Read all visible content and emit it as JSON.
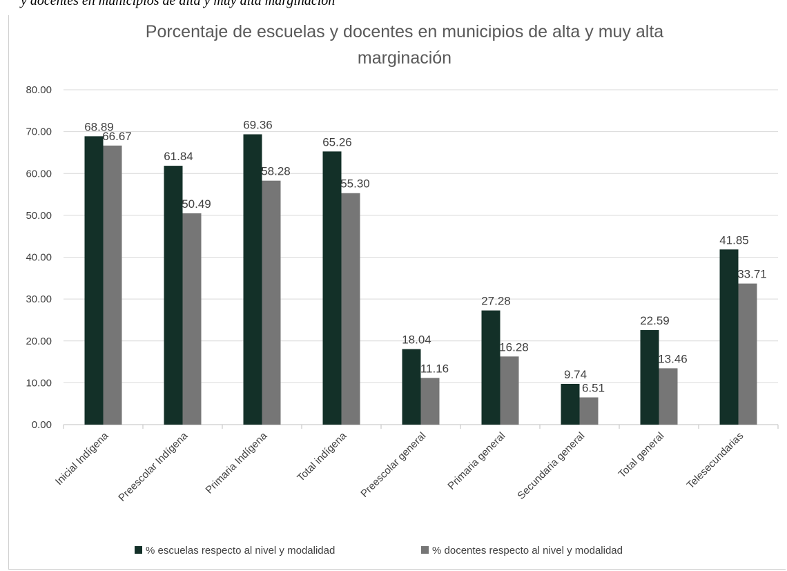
{
  "caption": "y docentes en municipios de alta y muy alta marginación",
  "chart_data": {
    "type": "bar",
    "title_lines": [
      "Porcentaje de escuelas y docentes en municipios de alta y muy alta",
      "marginación"
    ],
    "categories": [
      "Inicial Indígena",
      "Preescolar Indígena",
      "Primaria Indígena",
      "Total indígena",
      "Preescolar general",
      "Primaria general",
      "Secundaria general",
      "Total general",
      "Telesecundarias"
    ],
    "series": [
      {
        "name": "% escuelas respecto al nivel y modalidad",
        "color": "#133028",
        "values": [
          68.89,
          61.84,
          69.36,
          65.26,
          18.04,
          27.28,
          9.74,
          22.59,
          41.85
        ],
        "labels": [
          "68.89",
          "61.84",
          "69.36",
          "65.26",
          "18.04",
          "27.28",
          "9.74",
          "22.59",
          "41.85"
        ]
      },
      {
        "name": "% docentes respecto al nivel y modalidad",
        "color": "#767676",
        "values": [
          66.67,
          50.49,
          58.28,
          55.3,
          11.16,
          16.28,
          6.51,
          13.46,
          33.71
        ],
        "labels": [
          "66.67",
          "50.49",
          "58.28",
          "55.30",
          "11.16",
          "16.28",
          "6.51",
          "13.46",
          "33.71"
        ]
      }
    ],
    "ylim": [
      0,
      80
    ],
    "yticks": [
      "0.00",
      "10.00",
      "20.00",
      "30.00",
      "40.00",
      "50.00",
      "60.00",
      "70.00",
      "80.00"
    ],
    "grid": true,
    "legend_position": "bottom"
  }
}
